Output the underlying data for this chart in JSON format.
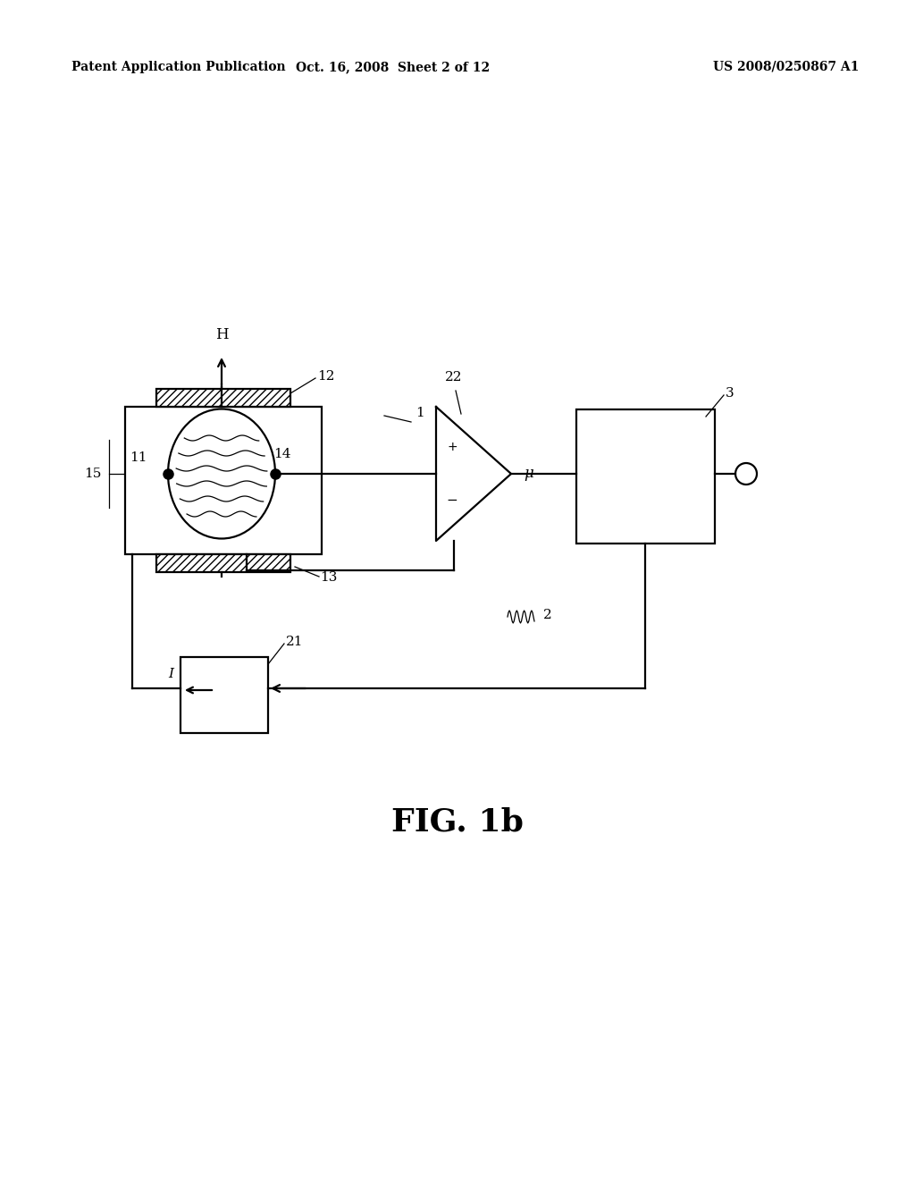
{
  "bg_color": "#ffffff",
  "line_color": "#000000",
  "header_left": "Patent Application Publication",
  "header_mid": "Oct. 16, 2008  Sheet 2 of 12",
  "header_right": "US 2008/0250867 A1",
  "fig_label": "FIG. 1b"
}
